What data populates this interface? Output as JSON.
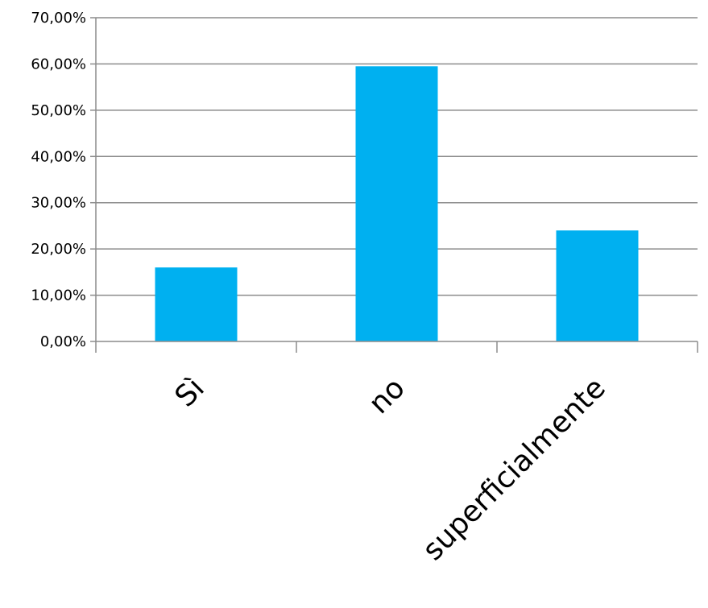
{
  "chart_data": {
    "type": "bar",
    "title": "",
    "xlabel": "",
    "ylabel": "",
    "categories": [
      "Sì",
      "no",
      "superficialmente"
    ],
    "values": [
      0.16,
      0.595,
      0.24
    ],
    "ylim": [
      0,
      0.7
    ],
    "y_ticks": [
      0,
      0.1,
      0.2,
      0.3,
      0.4,
      0.5,
      0.6,
      0.7
    ],
    "y_tick_labels": [
      "0,00%",
      "10,00%",
      "20,00%",
      "30,00%",
      "40,00%",
      "50,00%",
      "60,00%",
      "70,00%"
    ],
    "grid": true,
    "legend": "none",
    "colors": {
      "bar": "#00B0F0",
      "grid": "#8C8C8C",
      "axis": "#8C8C8C",
      "text": "#000000"
    }
  }
}
